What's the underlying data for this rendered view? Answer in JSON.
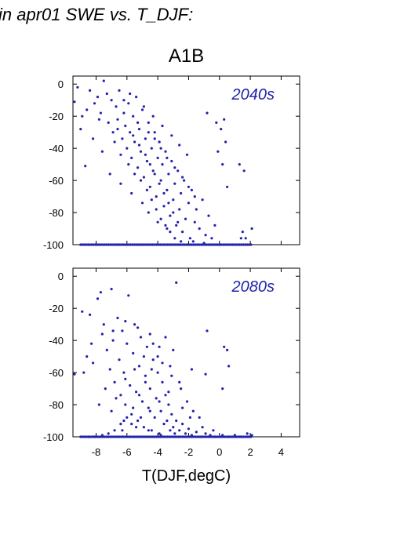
{
  "figure_title": "in apr01 SWE vs. T_DJF:",
  "chart_data": {
    "type": "scatter",
    "group_title": "A1B",
    "xlabel": "T(DJF,degC)",
    "x_ticks": [
      -8,
      -6,
      -4,
      -2,
      0,
      2,
      4
    ],
    "y_ticks": [
      0,
      -20,
      -40,
      -60,
      -80,
      -100
    ],
    "xlim": [
      -9.5,
      5.2
    ],
    "ylim": [
      -100,
      5
    ],
    "marker_color": "#2222aa",
    "panels": [
      {
        "label": "2040s",
        "points": [
          [
            -9.4,
            -11
          ],
          [
            -9.2,
            -2
          ],
          [
            -8.9,
            -20
          ],
          [
            -8.6,
            -16
          ],
          [
            -8.4,
            -4
          ],
          [
            -8.1,
            -12
          ],
          [
            -7.9,
            -8
          ],
          [
            -7.7,
            -18
          ],
          [
            -7.5,
            2
          ],
          [
            -7.3,
            -6
          ],
          [
            -7.2,
            -24
          ],
          [
            -7.0,
            -10
          ],
          [
            -6.9,
            -30
          ],
          [
            -6.7,
            -14
          ],
          [
            -6.6,
            -22
          ],
          [
            -6.5,
            -4
          ],
          [
            -6.3,
            -34
          ],
          [
            -6.2,
            -18
          ],
          [
            -6.1,
            -26
          ],
          [
            -6.0,
            -40
          ],
          [
            -5.9,
            -12
          ],
          [
            -5.8,
            -30
          ],
          [
            -5.7,
            -46
          ],
          [
            -5.6,
            -20
          ],
          [
            -5.5,
            -36
          ],
          [
            -5.4,
            -8
          ],
          [
            -5.3,
            -52
          ],
          [
            -5.2,
            -28
          ],
          [
            -5.1,
            -42
          ],
          [
            -5.0,
            -16
          ],
          [
            -4.9,
            -58
          ],
          [
            -4.8,
            -34
          ],
          [
            -4.7,
            -48
          ],
          [
            -4.6,
            -24
          ],
          [
            -4.5,
            -64
          ],
          [
            -4.4,
            -40
          ],
          [
            -4.3,
            -54
          ],
          [
            -4.2,
            -30
          ],
          [
            -4.1,
            -70
          ],
          [
            -4.0,
            -46
          ],
          [
            -3.9,
            -36
          ],
          [
            -3.8,
            -60
          ],
          [
            -3.7,
            -50
          ],
          [
            -3.6,
            -76
          ],
          [
            -3.5,
            -42
          ],
          [
            -3.4,
            -66
          ],
          [
            -3.3,
            -56
          ],
          [
            -3.2,
            -82
          ],
          [
            -3.1,
            -48
          ],
          [
            -3.0,
            -72
          ],
          [
            -2.9,
            -62
          ],
          [
            -2.8,
            -88
          ],
          [
            -2.7,
            -54
          ],
          [
            -2.6,
            -78
          ],
          [
            -2.5,
            -68
          ],
          [
            -2.4,
            -92
          ],
          [
            -2.3,
            -60
          ],
          [
            -2.2,
            -84
          ],
          [
            -2.0,
            -74
          ],
          [
            -1.9,
            -96
          ],
          [
            -1.8,
            -66
          ],
          [
            -1.6,
            -86
          ],
          [
            -1.5,
            -78
          ],
          [
            -1.3,
            -90
          ],
          [
            -1.1,
            -72
          ],
          [
            -0.9,
            -94
          ],
          [
            -0.7,
            -82
          ],
          [
            -0.5,
            -96
          ],
          [
            -0.3,
            -88
          ],
          [
            0.0,
            -100
          ],
          [
            -6.8,
            -36
          ],
          [
            -6.4,
            -44
          ],
          [
            -5.9,
            -50
          ],
          [
            -5.5,
            -56
          ],
          [
            -5.1,
            -60
          ],
          [
            -4.7,
            -66
          ],
          [
            -4.4,
            -72
          ],
          [
            -4.1,
            -78
          ],
          [
            -3.8,
            -84
          ],
          [
            -3.5,
            -88
          ],
          [
            -3.2,
            -92
          ],
          [
            -2.9,
            -96
          ],
          [
            -5.6,
            -32
          ],
          [
            -5.2,
            -38
          ],
          [
            -4.8,
            -44
          ],
          [
            -4.5,
            -50
          ],
          [
            -4.2,
            -56
          ],
          [
            -3.9,
            -62
          ],
          [
            -3.6,
            -68
          ],
          [
            -3.3,
            -74
          ],
          [
            -3.0,
            -80
          ],
          [
            -2.7,
            -86
          ],
          [
            -6.2,
            -10
          ],
          [
            -5.8,
            -6
          ],
          [
            -4.9,
            -14
          ],
          [
            -4.3,
            -20
          ],
          [
            -3.7,
            -26
          ],
          [
            -3.1,
            -32
          ],
          [
            -2.6,
            -38
          ],
          [
            -2.1,
            -44
          ],
          [
            -0.8,
            -18
          ],
          [
            -0.2,
            -24
          ],
          [
            0.1,
            -28
          ],
          [
            0.3,
            -22
          ],
          [
            0.4,
            -36
          ],
          [
            0.5,
            -64
          ],
          [
            0.2,
            -50
          ],
          [
            -0.1,
            -42
          ],
          [
            1.3,
            -50
          ],
          [
            1.6,
            -54
          ],
          [
            1.5,
            -92
          ],
          [
            1.7,
            -96
          ],
          [
            2.1,
            -90
          ],
          [
            1.4,
            -96
          ],
          [
            -9.0,
            -28
          ],
          [
            -8.2,
            -34
          ],
          [
            -7.6,
            -42
          ],
          [
            -8.7,
            -51
          ],
          [
            -7.1,
            -56
          ],
          [
            -6.4,
            -62
          ],
          [
            -5.7,
            -68
          ],
          [
            -5.0,
            -74
          ],
          [
            -4.6,
            -80
          ],
          [
            -4.0,
            -86
          ],
          [
            -3.4,
            -90
          ],
          [
            -2.5,
            -98
          ],
          [
            -1.7,
            -98
          ],
          [
            -1.0,
            -99
          ],
          [
            -7.8,
            -22
          ],
          [
            -6.6,
            -28
          ],
          [
            -4.2,
            -34
          ],
          [
            -3.8,
            -40
          ],
          [
            -3.4,
            -46
          ],
          [
            -2.9,
            -52
          ],
          [
            -2.4,
            -58
          ],
          [
            -2.0,
            -64
          ],
          [
            -1.6,
            -70
          ],
          [
            -5.3,
            -24
          ],
          [
            -4.6,
            -30
          ],
          [
            -3.9,
            -36
          ]
        ]
      },
      {
        "label": "2080s",
        "points": [
          [
            -9.4,
            -61
          ],
          [
            -8.9,
            -22
          ],
          [
            -8.6,
            -50
          ],
          [
            -8.4,
            -24
          ],
          [
            -8.2,
            -54
          ],
          [
            -7.9,
            -14
          ],
          [
            -7.7,
            -10
          ],
          [
            -7.5,
            -30
          ],
          [
            -7.3,
            -46
          ],
          [
            -7.1,
            -58
          ],
          [
            -7.0,
            -8
          ],
          [
            -6.9,
            -40
          ],
          [
            -6.8,
            -66
          ],
          [
            -6.6,
            -26
          ],
          [
            -6.5,
            -52
          ],
          [
            -6.4,
            -74
          ],
          [
            -6.3,
            -34
          ],
          [
            -6.2,
            -60
          ],
          [
            -6.1,
            -80
          ],
          [
            -6.0,
            -42
          ],
          [
            -5.9,
            -12
          ],
          [
            -5.8,
            -68
          ],
          [
            -5.7,
            -86
          ],
          [
            -5.6,
            -48
          ],
          [
            -5.5,
            -30
          ],
          [
            -5.4,
            -72
          ],
          [
            -5.3,
            -90
          ],
          [
            -5.2,
            -56
          ],
          [
            -5.1,
            -38
          ],
          [
            -5.0,
            -78
          ],
          [
            -4.9,
            -94
          ],
          [
            -4.8,
            -62
          ],
          [
            -4.7,
            -44
          ],
          [
            -4.6,
            -82
          ],
          [
            -4.5,
            -70
          ],
          [
            -4.4,
            -96
          ],
          [
            -4.3,
            -52
          ],
          [
            -4.2,
            -88
          ],
          [
            -4.1,
            -76
          ],
          [
            -4.0,
            -60
          ],
          [
            -3.9,
            -98
          ],
          [
            -3.8,
            -84
          ],
          [
            -3.7,
            -66
          ],
          [
            -3.6,
            -92
          ],
          [
            -3.5,
            -74
          ],
          [
            -3.4,
            -90
          ],
          [
            -3.3,
            -80
          ],
          [
            -3.2,
            -96
          ],
          [
            -3.1,
            -86
          ],
          [
            -3.0,
            -94
          ],
          [
            -2.9,
            -98
          ],
          [
            -2.8,
            -90
          ],
          [
            -2.6,
            -96
          ],
          [
            -2.4,
            -92
          ],
          [
            -2.2,
            -98
          ],
          [
            -2.0,
            -95
          ],
          [
            -1.8,
            -99
          ],
          [
            -1.5,
            -97
          ],
          [
            -1.2,
            -100
          ],
          [
            -0.9,
            -98
          ],
          [
            -0.6,
            -99
          ],
          [
            -0.3,
            -100
          ],
          [
            0.2,
            -99
          ],
          [
            0.6,
            -100
          ],
          [
            1.0,
            -99
          ],
          [
            1.4,
            -100
          ],
          [
            1.8,
            -98
          ],
          [
            2.1,
            -99
          ],
          [
            -0.8,
            -34
          ],
          [
            0.3,
            -44
          ],
          [
            0.5,
            -46
          ],
          [
            0.6,
            -56
          ],
          [
            0.2,
            -70
          ],
          [
            -0.9,
            -61
          ],
          [
            -1.8,
            -58
          ],
          [
            -2.8,
            -4
          ],
          [
            -3.0,
            -46
          ],
          [
            -3.5,
            -38
          ],
          [
            -4.0,
            -50
          ],
          [
            -4.4,
            -58
          ],
          [
            -4.8,
            -66
          ],
          [
            -5.2,
            -74
          ],
          [
            -5.6,
            -82
          ],
          [
            -6.0,
            -88
          ],
          [
            -6.4,
            -92
          ],
          [
            -6.8,
            -96
          ],
          [
            -7.2,
            -98
          ],
          [
            -7.6,
            -99
          ],
          [
            -8.1,
            -100
          ],
          [
            -8.5,
            -100
          ],
          [
            -8.8,
            -60
          ],
          [
            -7.4,
            -70
          ],
          [
            -6.7,
            -76
          ],
          [
            -6.1,
            -64
          ],
          [
            -5.5,
            -58
          ],
          [
            -4.9,
            -50
          ],
          [
            -4.3,
            -42
          ],
          [
            -3.7,
            -54
          ],
          [
            -3.1,
            -62
          ],
          [
            -2.5,
            -70
          ],
          [
            -2.1,
            -78
          ],
          [
            -1.7,
            -84
          ],
          [
            -1.3,
            -88
          ],
          [
            -2.6,
            -66
          ],
          [
            -3.3,
            -72
          ],
          [
            -3.9,
            -78
          ],
          [
            -4.5,
            -84
          ],
          [
            -5.1,
            -88
          ],
          [
            -5.7,
            -92
          ],
          [
            -6.3,
            -96
          ],
          [
            -7.8,
            -80
          ],
          [
            -7.0,
            -84
          ],
          [
            -6.2,
            -90
          ],
          [
            -5.4,
            -94
          ],
          [
            -4.6,
            -96
          ],
          [
            -3.8,
            -99
          ],
          [
            -8.3,
            -42
          ],
          [
            -7.6,
            -36
          ],
          [
            -6.9,
            -34
          ],
          [
            -6.1,
            -28
          ],
          [
            -5.3,
            -32
          ],
          [
            -4.5,
            -36
          ],
          [
            -3.9,
            -44
          ],
          [
            -3.2,
            -56
          ],
          [
            -2.4,
            -82
          ],
          [
            -1.9,
            -88
          ],
          [
            -1.1,
            -94
          ],
          [
            -0.4,
            -96
          ]
        ]
      }
    ]
  }
}
